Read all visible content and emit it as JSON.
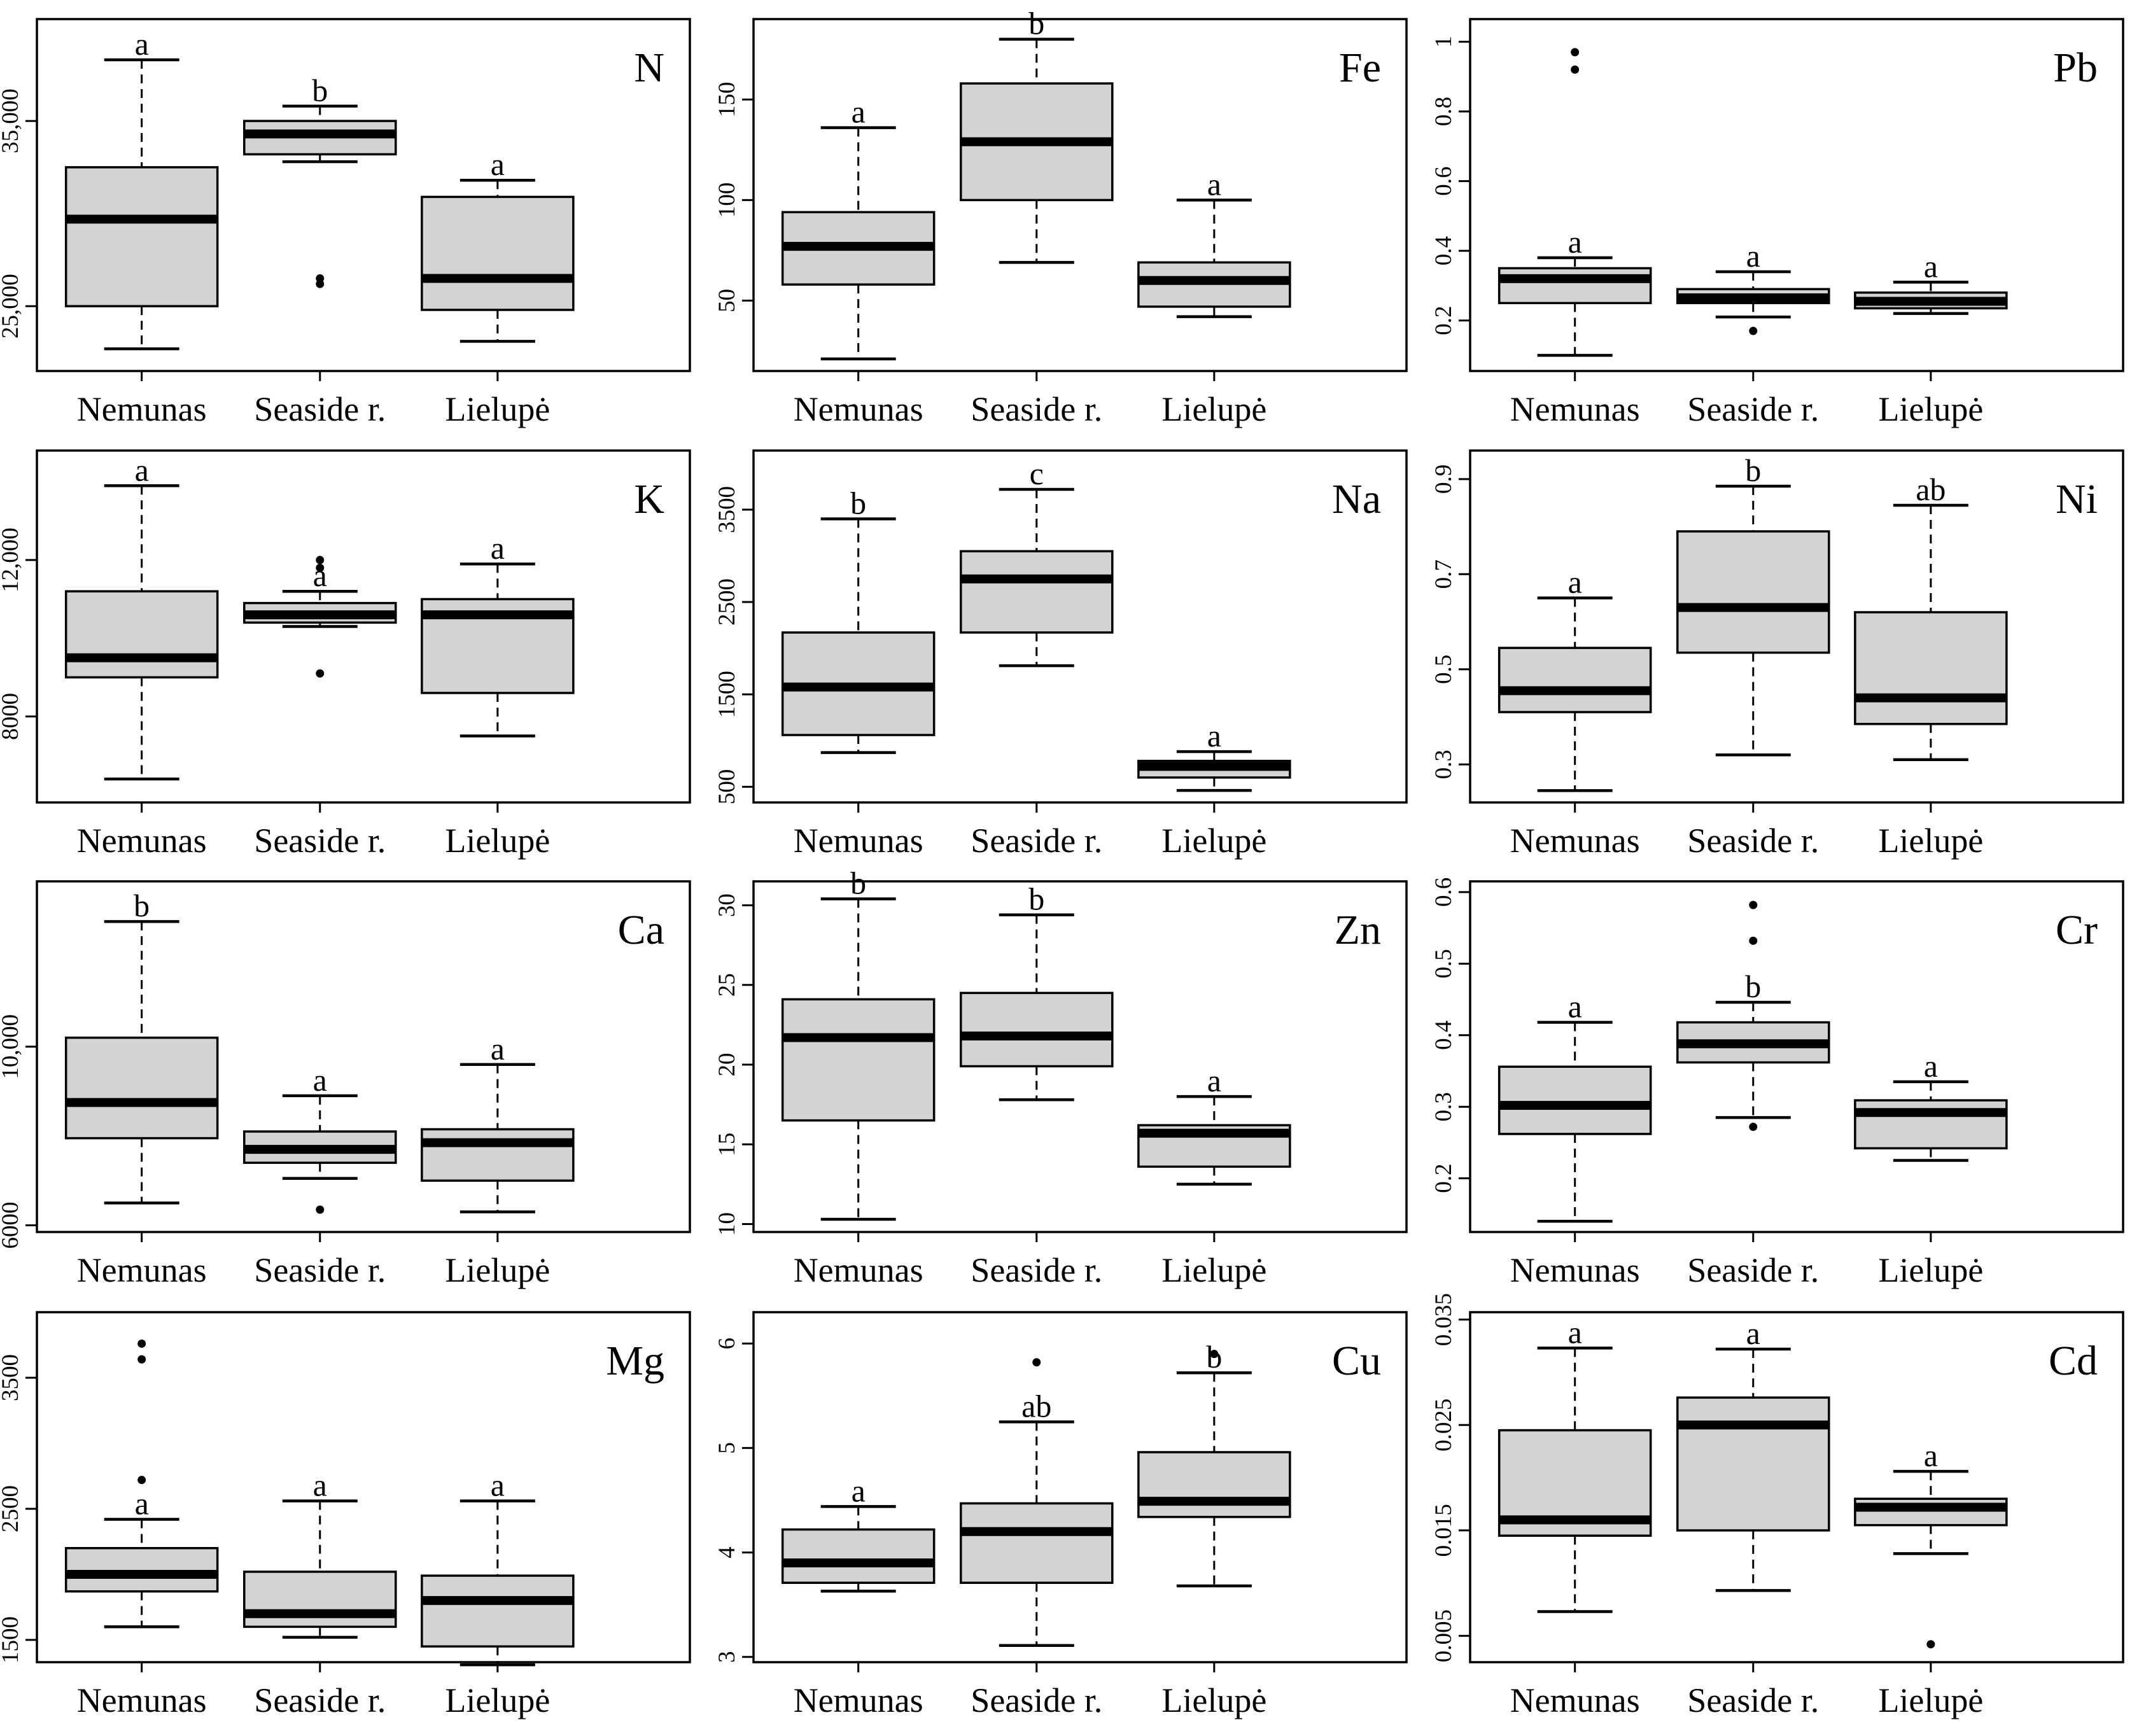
{
  "figure": {
    "rows": 4,
    "cols": 3,
    "box_fill": "#d3d3d3",
    "line_color": "#000000",
    "background": "#ffffff"
  },
  "chart_data": [
    {
      "type": "boxplot",
      "title": "N",
      "categories": [
        "Nemunas",
        "Seaside r.",
        "Lielupė"
      ],
      "ylim": [
        21500,
        40500
      ],
      "yticks": [
        25000,
        35000
      ],
      "ytick_labels": [
        "25,000",
        "35,000"
      ],
      "boxes": [
        {
          "min": 22700,
          "q1": 25000,
          "median": 29700,
          "q3": 32500,
          "max": 38300,
          "outliers": [],
          "letter": "a"
        },
        {
          "min": 32800,
          "q1": 33200,
          "median": 34300,
          "q3": 35000,
          "max": 35800,
          "outliers": [
            26500,
            26200
          ],
          "letter": "b"
        },
        {
          "min": 23100,
          "q1": 24800,
          "median": 26500,
          "q3": 30900,
          "max": 31800,
          "outliers": [],
          "letter": "a"
        }
      ]
    },
    {
      "type": "boxplot",
      "title": "Fe",
      "categories": [
        "Nemunas",
        "Seaside r.",
        "Lielupė"
      ],
      "ylim": [
        15,
        190
      ],
      "yticks": [
        50,
        100,
        150
      ],
      "ytick_labels": [
        "50",
        "100",
        "150"
      ],
      "boxes": [
        {
          "min": 21,
          "q1": 58,
          "median": 77,
          "q3": 94,
          "max": 136,
          "outliers": [],
          "letter": "a"
        },
        {
          "min": 69,
          "q1": 100,
          "median": 129,
          "q3": 158,
          "max": 180,
          "outliers": [],
          "letter": "b"
        },
        {
          "min": 42,
          "q1": 47,
          "median": 60,
          "q3": 69,
          "max": 100,
          "outliers": [],
          "letter": "a"
        }
      ]
    },
    {
      "type": "boxplot",
      "title": "Pb",
      "categories": [
        "Nemunas",
        "Seaside r.",
        "Lielupė"
      ],
      "ylim": [
        0.055,
        1.065
      ],
      "yticks": [
        0.2,
        0.4,
        0.6,
        0.8,
        1.0
      ],
      "ytick_labels": [
        "0.2",
        "0.4",
        "0.6",
        "0.8",
        "1"
      ],
      "boxes": [
        {
          "min": 0.1,
          "q1": 0.25,
          "median": 0.32,
          "q3": 0.35,
          "max": 0.38,
          "outliers": [
            0.97,
            0.92
          ],
          "letter": "a"
        },
        {
          "min": 0.21,
          "q1": 0.25,
          "median": 0.265,
          "q3": 0.29,
          "max": 0.34,
          "outliers": [
            0.17
          ],
          "letter": "a"
        },
        {
          "min": 0.22,
          "q1": 0.235,
          "median": 0.255,
          "q3": 0.28,
          "max": 0.31,
          "outliers": [],
          "letter": "a"
        }
      ]
    },
    {
      "type": "boxplot",
      "title": "K",
      "categories": [
        "Nemunas",
        "Seaside r.",
        "Lielupė"
      ],
      "ylim": [
        5800,
        14800
      ],
      "yticks": [
        8000,
        12000
      ],
      "ytick_labels": [
        "8000",
        "12,000"
      ],
      "boxes": [
        {
          "min": 6400,
          "q1": 9000,
          "median": 9500,
          "q3": 11200,
          "max": 13900,
          "outliers": [],
          "letter": "a"
        },
        {
          "min": 10300,
          "q1": 10400,
          "median": 10600,
          "q3": 10900,
          "max": 11200,
          "outliers": [
            12000,
            11800,
            9100
          ],
          "letter": "a"
        },
        {
          "min": 7500,
          "q1": 8600,
          "median": 10600,
          "q3": 11000,
          "max": 11900,
          "outliers": [],
          "letter": "a"
        }
      ]
    },
    {
      "type": "boxplot",
      "title": "Na",
      "categories": [
        "Nemunas",
        "Seaside r.",
        "Lielupė"
      ],
      "ylim": [
        330,
        4140
      ],
      "yticks": [
        500,
        1500,
        2500,
        3500
      ],
      "ytick_labels": [
        "500",
        "1500",
        "2500",
        "3500"
      ],
      "boxes": [
        {
          "min": 870,
          "q1": 1060,
          "median": 1580,
          "q3": 2170,
          "max": 3400,
          "outliers": [],
          "letter": "b"
        },
        {
          "min": 1810,
          "q1": 2170,
          "median": 2750,
          "q3": 3050,
          "max": 3720,
          "outliers": [],
          "letter": "c"
        },
        {
          "min": 460,
          "q1": 600,
          "median": 720,
          "q3": 780,
          "max": 880,
          "outliers": [],
          "letter": "a"
        }
      ]
    },
    {
      "type": "boxplot",
      "title": "Ni",
      "categories": [
        "Nemunas",
        "Seaside r.",
        "Lielupė"
      ],
      "ylim": [
        0.22,
        0.96
      ],
      "yticks": [
        0.3,
        0.5,
        0.7,
        0.9
      ],
      "ytick_labels": [
        "0.3",
        "0.5",
        "0.7",
        "0.9"
      ],
      "boxes": [
        {
          "min": 0.245,
          "q1": 0.41,
          "median": 0.455,
          "q3": 0.545,
          "max": 0.65,
          "outliers": [],
          "letter": "a"
        },
        {
          "min": 0.32,
          "q1": 0.535,
          "median": 0.63,
          "q3": 0.79,
          "max": 0.885,
          "outliers": [],
          "letter": "b"
        },
        {
          "min": 0.31,
          "q1": 0.385,
          "median": 0.44,
          "q3": 0.62,
          "max": 0.845,
          "outliers": [],
          "letter": "ab"
        }
      ]
    },
    {
      "type": "boxplot",
      "title": "Ca",
      "categories": [
        "Nemunas",
        "Seaside r.",
        "Lielupė"
      ],
      "ylim": [
        5850,
        13700
      ],
      "yticks": [
        6000,
        10000
      ],
      "ytick_labels": [
        "6000",
        "10,000"
      ],
      "boxes": [
        {
          "min": 6500,
          "q1": 7950,
          "median": 8750,
          "q3": 10200,
          "max": 12800,
          "outliers": [],
          "letter": "b"
        },
        {
          "min": 7050,
          "q1": 7400,
          "median": 7700,
          "q3": 8100,
          "max": 8900,
          "outliers": [
            6350
          ],
          "letter": "a"
        },
        {
          "min": 6300,
          "q1": 7000,
          "median": 7850,
          "q3": 8150,
          "max": 9600,
          "outliers": [],
          "letter": "a"
        }
      ]
    },
    {
      "type": "boxplot",
      "title": "Zn",
      "categories": [
        "Nemunas",
        "Seaside r.",
        "Lielupė"
      ],
      "ylim": [
        9.5,
        31.5
      ],
      "yticks": [
        10,
        15,
        20,
        25,
        30
      ],
      "ytick_labels": [
        "10",
        "15",
        "20",
        "25",
        "30"
      ],
      "boxes": [
        {
          "min": 10.3,
          "q1": 16.5,
          "median": 21.7,
          "q3": 24.1,
          "max": 30.4,
          "outliers": [],
          "letter": "b"
        },
        {
          "min": 17.8,
          "q1": 19.9,
          "median": 21.8,
          "q3": 24.5,
          "max": 29.4,
          "outliers": [],
          "letter": "b"
        },
        {
          "min": 12.5,
          "q1": 13.6,
          "median": 15.7,
          "q3": 16.2,
          "max": 18.0,
          "outliers": [],
          "letter": "a"
        }
      ]
    },
    {
      "type": "boxplot",
      "title": "Cr",
      "categories": [
        "Nemunas",
        "Seaside r.",
        "Lielupė"
      ],
      "ylim": [
        0.125,
        0.615
      ],
      "yticks": [
        0.2,
        0.3,
        0.4,
        0.5,
        0.6
      ],
      "ytick_labels": [
        "0.2",
        "0.3",
        "0.4",
        "0.5",
        "0.6"
      ],
      "boxes": [
        {
          "min": 0.14,
          "q1": 0.262,
          "median": 0.302,
          "q3": 0.356,
          "max": 0.418,
          "outliers": [],
          "letter": "a"
        },
        {
          "min": 0.285,
          "q1": 0.362,
          "median": 0.388,
          "q3": 0.418,
          "max": 0.446,
          "outliers": [
            0.582,
            0.532,
            0.272
          ],
          "letter": "b"
        },
        {
          "min": 0.225,
          "q1": 0.242,
          "median": 0.292,
          "q3": 0.309,
          "max": 0.335,
          "outliers": [],
          "letter": "a"
        }
      ]
    },
    {
      "type": "boxplot",
      "title": "Mg",
      "categories": [
        "Nemunas",
        "Seaside r.",
        "Lielupė"
      ],
      "ylim": [
        1330,
        4000
      ],
      "yticks": [
        1500,
        2500,
        3500
      ],
      "ytick_labels": [
        "1500",
        "2500",
        "3500"
      ],
      "boxes": [
        {
          "min": 1600,
          "q1": 1870,
          "median": 2000,
          "q3": 2200,
          "max": 2420,
          "outliers": [
            3760,
            3640,
            2720
          ],
          "letter": "a"
        },
        {
          "min": 1520,
          "q1": 1600,
          "median": 1700,
          "q3": 2020,
          "max": 2560,
          "outliers": [],
          "letter": "a"
        },
        {
          "min": 1310,
          "q1": 1450,
          "median": 1800,
          "q3": 1990,
          "max": 2560,
          "outliers": [],
          "letter": "a"
        }
      ]
    },
    {
      "type": "boxplot",
      "title": "Cu",
      "categories": [
        "Nemunas",
        "Seaside r.",
        "Lielupė"
      ],
      "ylim": [
        2.95,
        6.3
      ],
      "yticks": [
        3,
        4,
        5,
        6
      ],
      "ytick_labels": [
        "3",
        "4",
        "5",
        "6"
      ],
      "boxes": [
        {
          "min": 3.63,
          "q1": 3.71,
          "median": 3.9,
          "q3": 4.22,
          "max": 4.44,
          "outliers": [],
          "letter": "a"
        },
        {
          "min": 3.11,
          "q1": 3.71,
          "median": 4.2,
          "q3": 4.47,
          "max": 5.25,
          "outliers": [
            5.82
          ],
          "letter": "ab"
        },
        {
          "min": 3.68,
          "q1": 4.34,
          "median": 4.49,
          "q3": 4.96,
          "max": 5.72,
          "outliers": [
            5.9
          ],
          "letter": "b"
        }
      ]
    },
    {
      "type": "boxplot",
      "title": "Cd",
      "categories": [
        "Nemunas",
        "Seaside r.",
        "Lielupė"
      ],
      "ylim": [
        0.0025,
        0.0357
      ],
      "yticks": [
        0.005,
        0.015,
        0.025,
        0.035
      ],
      "ytick_labels": [
        "0.005",
        "0.015",
        "0.025",
        "0.035"
      ],
      "boxes": [
        {
          "min": 0.0073,
          "q1": 0.0145,
          "median": 0.016,
          "q3": 0.0245,
          "max": 0.0323,
          "outliers": [],
          "letter": "a"
        },
        {
          "min": 0.0093,
          "q1": 0.015,
          "median": 0.025,
          "q3": 0.0276,
          "max": 0.0322,
          "outliers": [],
          "letter": "a"
        },
        {
          "min": 0.0128,
          "q1": 0.0155,
          "median": 0.0172,
          "q3": 0.018,
          "max": 0.0206,
          "outliers": [
            0.0042
          ],
          "letter": "a"
        }
      ]
    }
  ]
}
